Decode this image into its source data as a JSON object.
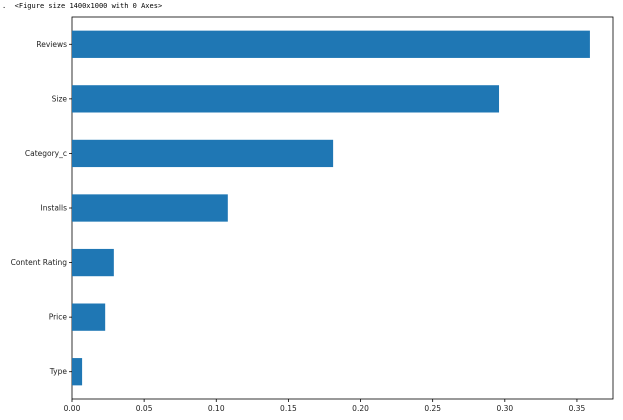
{
  "output": {
    "prompt_marker": ".",
    "text": "<Figure size 1400x1000 with 0 Axes>"
  },
  "chart_data": {
    "type": "bar",
    "orientation": "horizontal",
    "categories": [
      "Reviews",
      "Size",
      "Category_c",
      "Installs",
      "Content Rating",
      "Price",
      "Type"
    ],
    "values": [
      0.359,
      0.296,
      0.181,
      0.108,
      0.029,
      0.023,
      0.007
    ],
    "xlim": [
      0,
      0.375
    ],
    "xticks": [
      0.0,
      0.05,
      0.1,
      0.15,
      0.2,
      0.25,
      0.3,
      0.35
    ],
    "xtick_labels": [
      "0.00",
      "0.05",
      "0.10",
      "0.15",
      "0.20",
      "0.25",
      "0.30",
      "0.35"
    ],
    "bar_color": "#1f77b4",
    "grid": false,
    "title": "",
    "xlabel": "",
    "ylabel": ""
  }
}
